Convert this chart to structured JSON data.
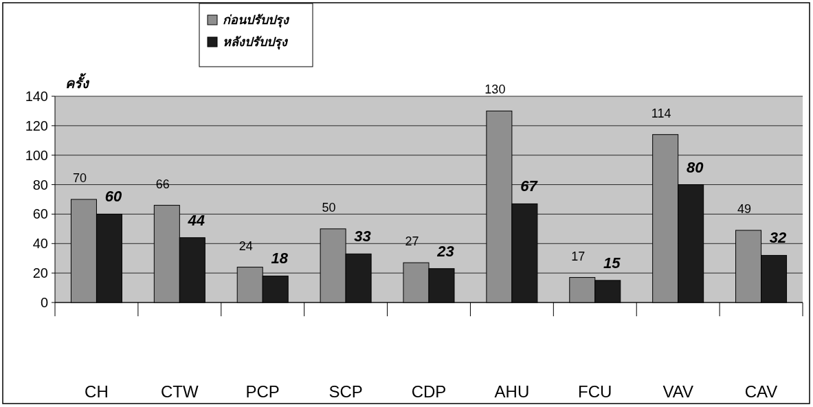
{
  "chart_data": {
    "type": "bar",
    "ylabel": "ครั้ง",
    "categories": [
      "CH",
      "CTW",
      "PCP",
      "SCP",
      "CDP",
      "AHU",
      "FCU",
      "VAV",
      "CAV"
    ],
    "series": [
      {
        "name": "ก่อนปรับปรุง",
        "color": "#8f8f8f",
        "values": [
          70,
          66,
          24,
          50,
          27,
          130,
          17,
          114,
          49
        ]
      },
      {
        "name": "หลังปรับปรุง",
        "color": "#1c1c1c",
        "values": [
          60,
          44,
          18,
          33,
          23,
          67,
          15,
          80,
          32
        ]
      }
    ],
    "ylim": [
      0,
      140
    ],
    "yticks": [
      0,
      20,
      40,
      60,
      80,
      100,
      120,
      140
    ],
    "grid": "y",
    "legend": "top",
    "data_labels": true
  }
}
